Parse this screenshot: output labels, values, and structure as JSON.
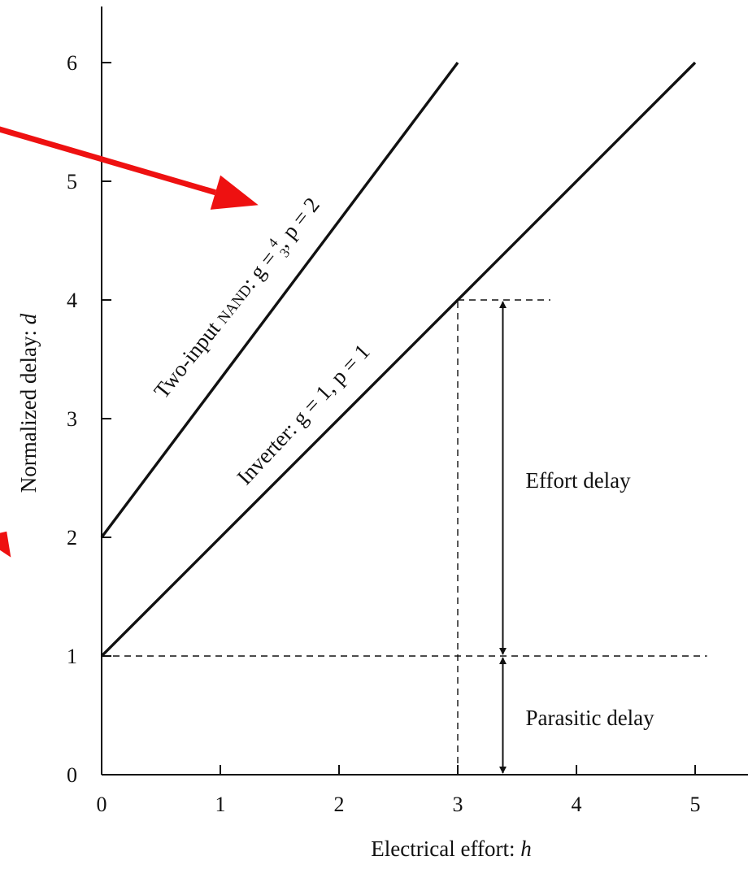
{
  "chart_data": {
    "type": "line",
    "xlabel": "Electrical effort: ",
    "xlabel_var": "h",
    "ylabel": "Normalized delay: ",
    "ylabel_var": "d",
    "xlim": [
      0,
      5
    ],
    "ylim": [
      0,
      6.5
    ],
    "x_ticks": [
      "0",
      "1",
      "2",
      "3",
      "4",
      "5"
    ],
    "y_ticks": [
      "0",
      "1",
      "2",
      "3",
      "4",
      "5",
      "6"
    ],
    "grid": false,
    "series": [
      {
        "label_prefix": "Two-input ",
        "label_gate": "NAND",
        "label_g": ": g = ",
        "label_frac_num": "4",
        "label_frac_den": "3",
        "label_p": ", p = 2",
        "g": 1.3333,
        "p": 2,
        "x": [
          0,
          3
        ],
        "y": [
          2,
          6
        ]
      },
      {
        "label": "Inverter: g = 1, p = 1",
        "g": 1,
        "p": 1,
        "x": [
          0,
          5
        ],
        "y": [
          1,
          6
        ]
      }
    ],
    "reference_lines": [
      {
        "type": "vertical",
        "x": 3,
        "y_range": [
          0,
          4
        ]
      },
      {
        "type": "horizontal",
        "y": 4,
        "x_range": [
          3,
          3.78
        ]
      },
      {
        "type": "horizontal",
        "y": 1,
        "x_range": [
          0,
          5.1
        ]
      }
    ],
    "annotations": [
      {
        "text": "Effort delay",
        "x": 3.38,
        "y_range": [
          1,
          4
        ]
      },
      {
        "text": "Parasitic delay",
        "x": 3.38,
        "y_range": [
          0,
          1
        ]
      }
    ],
    "overlay_arrows": [
      {
        "color": "#ee1111",
        "from": [
          -0.9,
          5.45
        ],
        "to": [
          1.32,
          4.8
        ]
      },
      {
        "color": "#ee1111",
        "from": [
          -0.9,
          1.9
        ],
        "to": [
          -0.8,
          2.05
        ]
      }
    ]
  }
}
